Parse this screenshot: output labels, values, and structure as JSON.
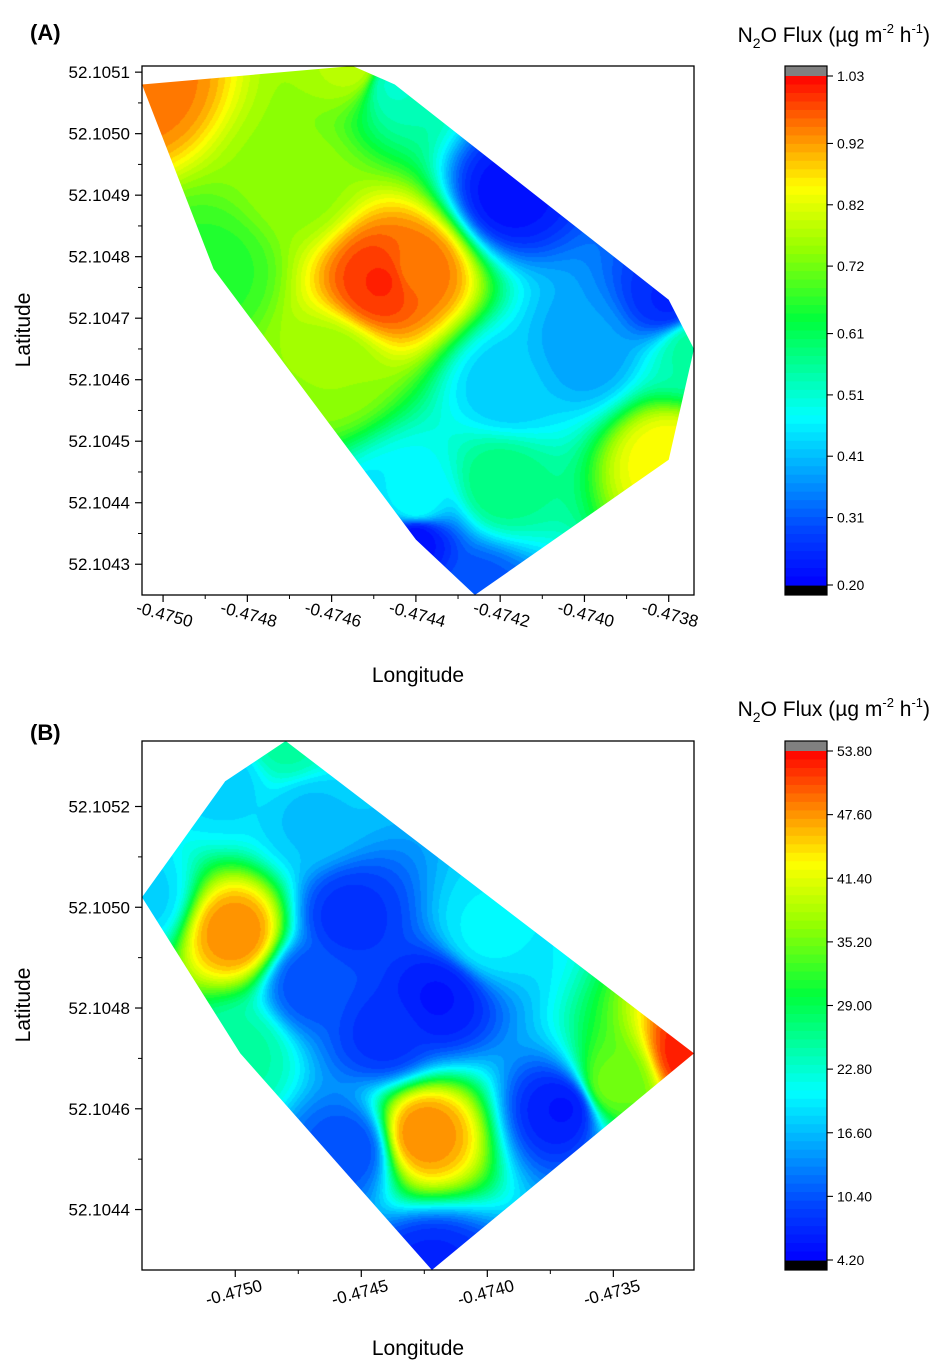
{
  "figure_labels": [
    "(A)",
    "(B)"
  ],
  "colormap": [
    "#000000",
    "#0000ff",
    "#0055ff",
    "#00aaff",
    "#00ffff",
    "#00ff88",
    "#00ff00",
    "#88ff00",
    "#ffff00",
    "#ffaa00",
    "#ff5500",
    "#ff0000",
    "#808080"
  ],
  "chart_data": [
    {
      "type": "heatmap",
      "panel_label": "(A)",
      "xlabel": "Longitude",
      "ylabel": "Latitude",
      "xlim": [
        -0.47505,
        -0.47374
      ],
      "ylim": [
        52.10425,
        52.10511
      ],
      "x_ticks": [
        "-0.4750",
        "-0.4748",
        "-0.4746",
        "-0.4744",
        "-0.4742",
        "-0.4740",
        "-0.4738"
      ],
      "x_tick_values": [
        -0.475,
        -0.4748,
        -0.4746,
        -0.4744,
        -0.4742,
        -0.474,
        -0.4738
      ],
      "y_ticks": [
        "52.1051",
        "52.1050",
        "52.1049",
        "52.1048",
        "52.1047",
        "52.1046",
        "52.1045",
        "52.1044",
        "52.1043"
      ],
      "y_tick_values": [
        52.1051,
        52.105,
        52.1049,
        52.1048,
        52.1047,
        52.1046,
        52.1045,
        52.1044,
        52.1043
      ],
      "colorbar": {
        "title_prefix": "N",
        "title_sub": "2",
        "title_mid": "O Flux (µg m",
        "title_sup1": "-2",
        "title_mid2": " h",
        "title_sup2": "-1",
        "title_suffix": ")",
        "min": 0.2,
        "max": 1.03,
        "tick_values": [
          1.03,
          0.92,
          0.82,
          0.72,
          0.61,
          0.51,
          0.41,
          0.31,
          0.2
        ],
        "tick_labels": [
          "1.03",
          "0.92",
          "0.82",
          "0.72",
          "0.61",
          "0.51",
          "0.41",
          "0.31",
          "0.20"
        ]
      },
      "points": [
        {
          "x": -0.47505,
          "y": 52.10508,
          "value": 0.95
        },
        {
          "x": -0.47455,
          "y": 52.10511,
          "value": 0.78
        },
        {
          "x": -0.47445,
          "y": 52.10508,
          "value": 0.52
        },
        {
          "x": -0.47418,
          "y": 52.1049,
          "value": 0.22
        },
        {
          "x": -0.4738,
          "y": 52.10473,
          "value": 0.25
        },
        {
          "x": -0.47374,
          "y": 52.10465,
          "value": 0.55
        },
        {
          "x": -0.4738,
          "y": 52.10447,
          "value": 0.85
        },
        {
          "x": -0.47426,
          "y": 52.10425,
          "value": 0.3
        },
        {
          "x": -0.4744,
          "y": 52.10434,
          "value": 0.22
        },
        {
          "x": -0.4746,
          "y": 52.10462,
          "value": 0.75
        },
        {
          "x": -0.4744,
          "y": 52.10478,
          "value": 0.95
        },
        {
          "x": -0.47448,
          "y": 52.10476,
          "value": 1.0
        },
        {
          "x": -0.47418,
          "y": 52.10459,
          "value": 0.42
        },
        {
          "x": -0.4742,
          "y": 52.10443,
          "value": 0.58
        },
        {
          "x": -0.474,
          "y": 52.10465,
          "value": 0.38
        },
        {
          "x": -0.47468,
          "y": 52.10492,
          "value": 0.74
        },
        {
          "x": -0.47488,
          "y": 52.10478,
          "value": 0.66
        },
        {
          "x": -0.4744,
          "y": 52.1044,
          "value": 0.48
        }
      ]
    },
    {
      "type": "heatmap",
      "panel_label": "(B)",
      "xlabel": "Longitude",
      "ylabel": "Latitude",
      "xlim": [
        -0.47537,
        -0.47318
      ],
      "ylim": [
        52.10428,
        52.10533
      ],
      "x_ticks": [
        "-0.4750",
        "-0.4745",
        "-0.4740",
        "-0.4735"
      ],
      "x_tick_values": [
        -0.475,
        -0.4745,
        -0.474,
        -0.4735
      ],
      "y_ticks": [
        "52.1052",
        "52.1050",
        "52.1048",
        "52.1046",
        "52.1044"
      ],
      "y_tick_values": [
        52.1052,
        52.105,
        52.1048,
        52.1046,
        52.1044
      ],
      "colorbar": {
        "title_prefix": "N",
        "title_sub": "2",
        "title_mid": "O Flux (µg m",
        "title_sup1": "-2",
        "title_mid2": " h",
        "title_sup2": "-1",
        "title_suffix": ")",
        "min": 4.2,
        "max": 53.8,
        "tick_values": [
          53.8,
          47.6,
          41.4,
          35.2,
          29.0,
          22.8,
          16.6,
          10.4,
          4.2
        ],
        "tick_labels": [
          "53.80",
          "47.60",
          "41.40",
          "35.20",
          "29.00",
          "22.80",
          "16.60",
          "10.40",
          "4.20"
        ]
      },
      "points": [
        {
          "x": -0.47537,
          "y": 52.10502,
          "value": 18.0
        },
        {
          "x": -0.47504,
          "y": 52.10525,
          "value": 18.0
        },
        {
          "x": -0.4748,
          "y": 52.10533,
          "value": 25.0
        },
        {
          "x": -0.47318,
          "y": 52.10471,
          "value": 53.0
        },
        {
          "x": -0.4735,
          "y": 52.10465,
          "value": 35.0
        },
        {
          "x": -0.47422,
          "y": 52.10428,
          "value": 7.0
        },
        {
          "x": -0.47455,
          "y": 52.10452,
          "value": 10.0
        },
        {
          "x": -0.47498,
          "y": 52.10471,
          "value": 25.0
        },
        {
          "x": -0.475,
          "y": 52.10495,
          "value": 48.0
        },
        {
          "x": -0.4747,
          "y": 52.10485,
          "value": 10.0
        },
        {
          "x": -0.47455,
          "y": 52.10498,
          "value": 8.0
        },
        {
          "x": -0.47425,
          "y": 52.10455,
          "value": 48.0
        },
        {
          "x": -0.4742,
          "y": 52.10482,
          "value": 6.0
        },
        {
          "x": -0.4737,
          "y": 52.1046,
          "value": 6.0
        },
        {
          "x": -0.4747,
          "y": 52.10518,
          "value": 17.0
        },
        {
          "x": -0.474,
          "y": 52.10495,
          "value": 20.0
        },
        {
          "x": -0.4744,
          "y": 52.10475,
          "value": 8.0
        }
      ]
    }
  ]
}
